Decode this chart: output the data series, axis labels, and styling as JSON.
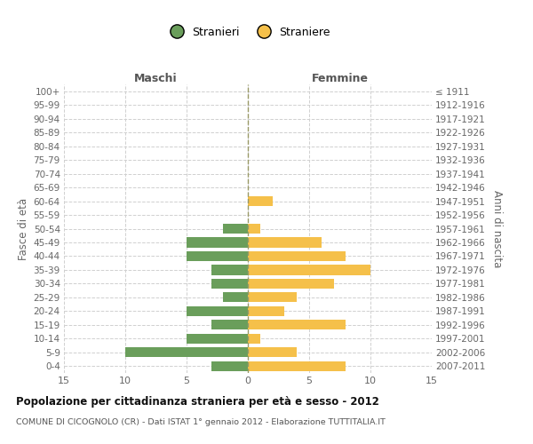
{
  "age_groups": [
    "100+",
    "95-99",
    "90-94",
    "85-89",
    "80-84",
    "75-79",
    "70-74",
    "65-69",
    "60-64",
    "55-59",
    "50-54",
    "45-49",
    "40-44",
    "35-39",
    "30-34",
    "25-29",
    "20-24",
    "15-19",
    "10-14",
    "5-9",
    "0-4"
  ],
  "birth_years": [
    "≤ 1911",
    "1912-1916",
    "1917-1921",
    "1922-1926",
    "1927-1931",
    "1932-1936",
    "1937-1941",
    "1942-1946",
    "1947-1951",
    "1952-1956",
    "1957-1961",
    "1962-1966",
    "1967-1971",
    "1972-1976",
    "1977-1981",
    "1982-1986",
    "1987-1991",
    "1992-1996",
    "1997-2001",
    "2002-2006",
    "2007-2011"
  ],
  "males": [
    0,
    0,
    0,
    0,
    0,
    0,
    0,
    0,
    0,
    0,
    2,
    5,
    5,
    3,
    3,
    2,
    5,
    3,
    5,
    10,
    3
  ],
  "females": [
    0,
    0,
    0,
    0,
    0,
    0,
    0,
    0,
    2,
    0,
    1,
    6,
    8,
    10,
    7,
    4,
    3,
    8,
    1,
    4,
    8
  ],
  "male_color": "#6a9e5b",
  "female_color": "#f5c04a",
  "grid_color": "#d0d0d0",
  "zeroline_color": "#999966",
  "title": "Popolazione per cittadinanza straniera per età e sesso - 2012",
  "subtitle": "COMUNE DI CICOGNOLO (CR) - Dati ISTAT 1° gennaio 2012 - Elaborazione TUTTITALIA.IT",
  "ylabel_left": "Fasce di età",
  "ylabel_right": "Anni di nascita",
  "header_left": "Maschi",
  "header_right": "Femmine",
  "legend_male": "Stranieri",
  "legend_female": "Straniere",
  "xlim": 15,
  "bar_height": 0.72
}
